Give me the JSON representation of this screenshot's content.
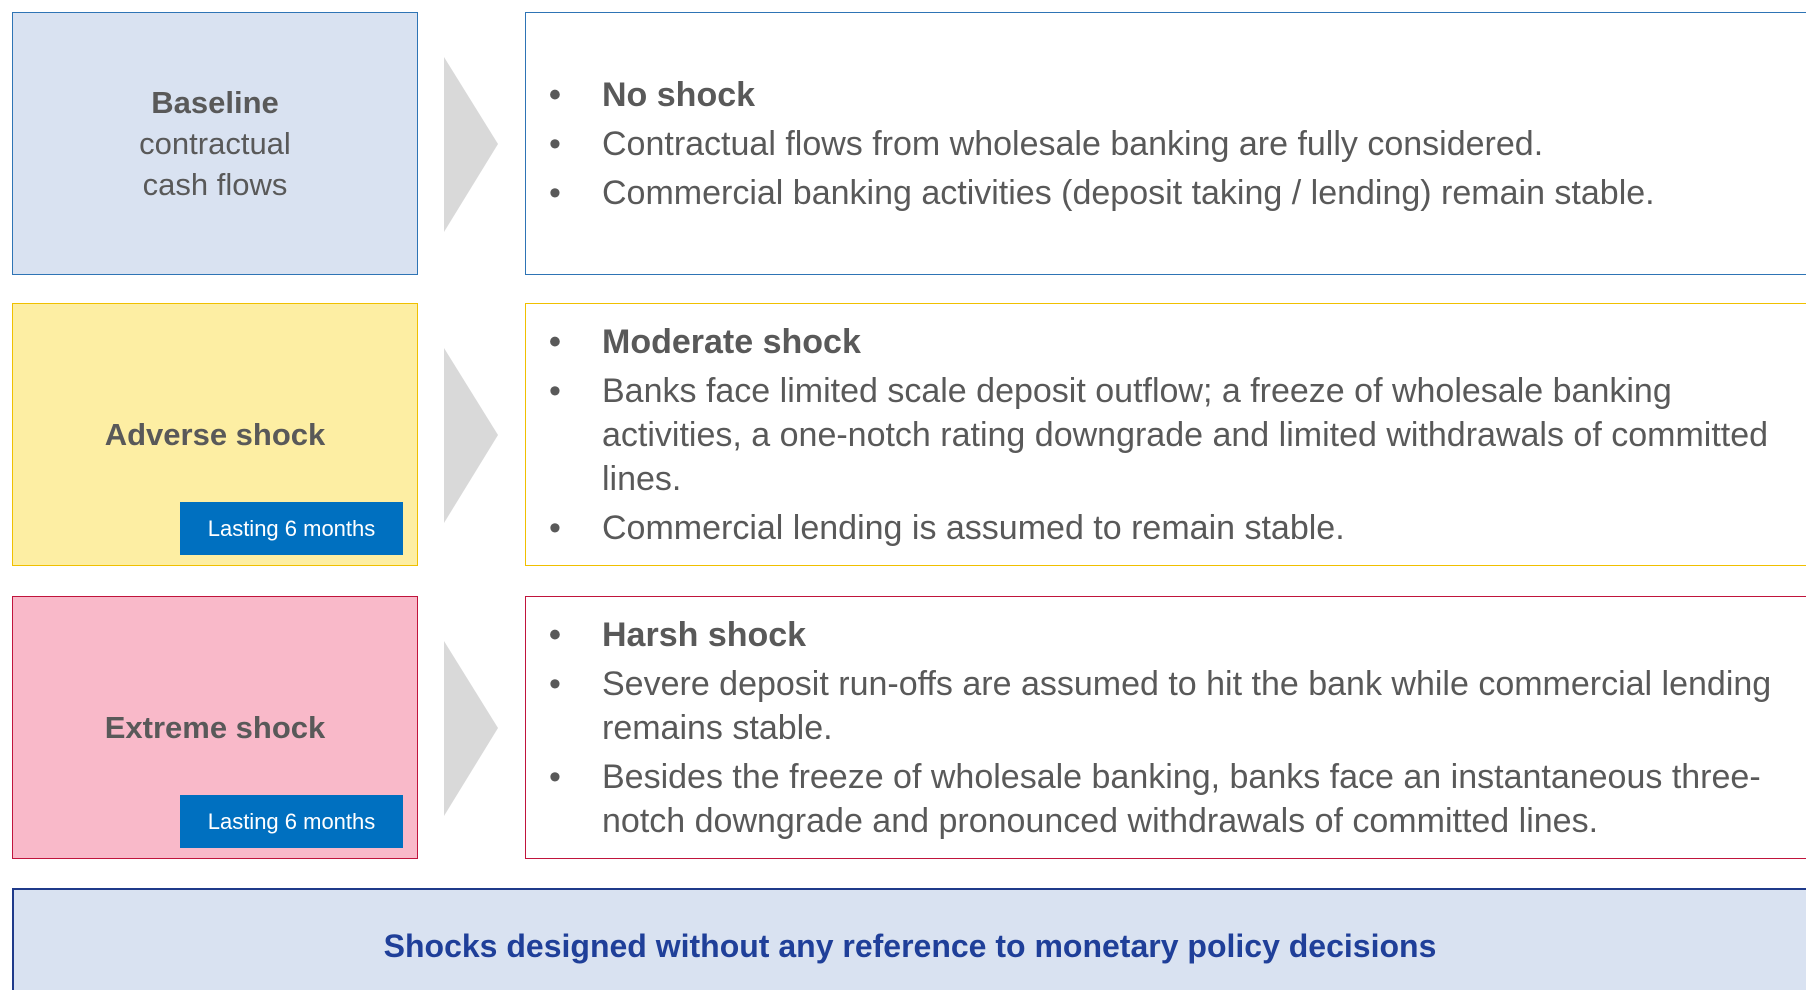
{
  "rows": [
    {
      "label": "Baseline",
      "sublabel": "contractual cash flows",
      "heading": "No shock",
      "bullets": [
        "Contractual flows from wholesale banking are fully considered.",
        "Commercial banking activities (deposit taking / lending) remain stable."
      ]
    },
    {
      "label": "Adverse shock",
      "badge": "Lasting 6 months",
      "heading": "Moderate shock",
      "bullets": [
        "Banks face limited scale deposit outflow; a freeze of wholesale banking activities, a one-notch rating downgrade and limited withdrawals of committed lines.",
        "Commercial lending is assumed to remain stable."
      ]
    },
    {
      "label": "Extreme shock",
      "badge": "Lasting 6 months",
      "heading": "Harsh shock",
      "bullets": [
        "Severe deposit run-offs are assumed to hit the bank while commercial lending remains stable.",
        "Besides the freeze of wholesale banking, banks face an instantaneous three-notch downgrade and pronounced withdrawals of committed lines."
      ]
    }
  ],
  "footer": "Shocks designed without any reference to monetary policy decisions"
}
